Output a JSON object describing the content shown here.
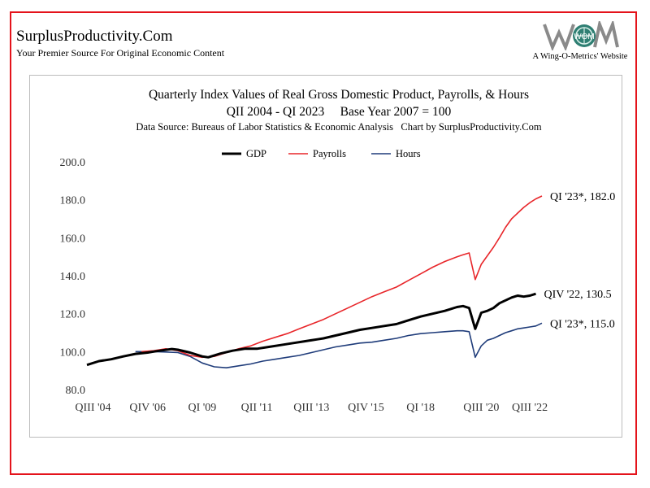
{
  "header": {
    "site_title": "SurplusProductivity.Com",
    "tagline": "Your Premier Source For Original Economic Content",
    "logo_caption": "A Wing-O-Metrics' Website",
    "logo_text": "WOM"
  },
  "colors": {
    "frame": "#e4131b",
    "gdp": "#000000",
    "payrolls": "#e8262a",
    "hours": "#1f3c7a"
  },
  "chart_data": {
    "type": "line",
    "title": "Quarterly Index Values of Real Gross Domestic Product, Payrolls, & Hours",
    "subtitle": "QII 2004 - QI 2023     Base Year 2007 = 100",
    "source": "Data Source: Bureaus of Labor Statistics & Economic Analysis   Chart by SurplusProductivity.Com",
    "xlabel": "",
    "ylabel": "",
    "ylim": [
      80,
      200
    ],
    "yticks": [
      80,
      100,
      120,
      140,
      160,
      180,
      200
    ],
    "ytick_labels": [
      "80.0",
      "100.0",
      "120.0",
      "140.0",
      "160.0",
      "180.0",
      "200.0"
    ],
    "xlim": [
      2004.25,
      2023.0
    ],
    "xticks": [
      2004.5,
      2006.75,
      2009.0,
      2011.25,
      2013.5,
      2015.75,
      2018.0,
      2020.5,
      2022.5
    ],
    "xtick_labels": [
      "QIII '04",
      "QIV '06",
      "QI '09",
      "QII '11",
      "QIII '13",
      "QIV '15",
      "QI '18",
      "QIII '20",
      "QIII '22"
    ],
    "legend": [
      "GDP",
      "Payrolls",
      "Hours"
    ],
    "grid": false,
    "series": [
      {
        "name": "GDP",
        "x": [
          2004.25,
          2004.75,
          2005.25,
          2005.75,
          2006.25,
          2006.75,
          2007.0,
          2007.25,
          2007.75,
          2008.0,
          2008.5,
          2009.0,
          2009.25,
          2009.75,
          2010.25,
          2010.75,
          2011.25,
          2011.75,
          2012.25,
          2012.75,
          2013.25,
          2013.75,
          2014.0,
          2014.5,
          2015.0,
          2015.5,
          2016.0,
          2016.5,
          2017.0,
          2017.5,
          2018.0,
          2018.5,
          2019.0,
          2019.5,
          2019.75,
          2020.0,
          2020.25,
          2020.5,
          2020.75,
          2021.0,
          2021.25,
          2021.5,
          2021.75,
          2022.0,
          2022.25,
          2022.5,
          2022.75
        ],
        "values": [
          93.0,
          95.0,
          96.0,
          97.5,
          98.8,
          99.5,
          100.0,
          100.5,
          101.4,
          101.0,
          99.5,
          97.5,
          97.0,
          99.0,
          100.5,
          101.5,
          101.5,
          102.5,
          103.5,
          104.5,
          105.5,
          106.5,
          107.0,
          108.5,
          110.0,
          111.5,
          112.5,
          113.5,
          114.5,
          116.5,
          118.5,
          120.0,
          121.5,
          123.5,
          124.0,
          123.0,
          112.0,
          120.5,
          121.5,
          123.0,
          125.5,
          127.0,
          128.5,
          129.5,
          129.0,
          129.5,
          130.5
        ]
      },
      {
        "name": "Payrolls",
        "x": [
          2006.5,
          2007.0,
          2007.5,
          2008.0,
          2008.5,
          2009.0,
          2009.5,
          2010.0,
          2010.5,
          2011.0,
          2011.5,
          2012.0,
          2012.5,
          2013.0,
          2013.5,
          2014.0,
          2014.5,
          2015.0,
          2015.5,
          2016.0,
          2016.5,
          2017.0,
          2017.5,
          2018.0,
          2018.5,
          2019.0,
          2019.5,
          2019.75,
          2020.0,
          2020.25,
          2020.5,
          2020.75,
          2021.0,
          2021.25,
          2021.5,
          2021.75,
          2022.0,
          2022.25,
          2022.5,
          2022.75,
          2023.0
        ],
        "values": [
          100.0,
          100.5,
          101.5,
          100.5,
          98.0,
          97.0,
          97.5,
          99.5,
          101.5,
          103.0,
          105.5,
          107.5,
          109.5,
          112.0,
          114.5,
          117.0,
          120.0,
          123.0,
          126.0,
          129.0,
          131.5,
          134.0,
          137.5,
          141.0,
          144.5,
          147.5,
          150.0,
          151.0,
          152.0,
          138.0,
          146.0,
          150.5,
          155.0,
          160.0,
          165.5,
          170.0,
          173.0,
          176.0,
          178.5,
          180.5,
          182.0
        ]
      },
      {
        "name": "Hours",
        "x": [
          2006.25,
          2007.0,
          2007.5,
          2008.0,
          2008.5,
          2009.0,
          2009.5,
          2010.0,
          2010.5,
          2011.0,
          2011.5,
          2012.0,
          2012.5,
          2013.0,
          2013.5,
          2014.0,
          2014.5,
          2015.0,
          2015.5,
          2016.0,
          2016.5,
          2017.0,
          2017.5,
          2018.0,
          2018.5,
          2019.0,
          2019.5,
          2019.75,
          2020.0,
          2020.25,
          2020.5,
          2020.75,
          2021.0,
          2021.25,
          2021.5,
          2021.75,
          2022.0,
          2022.25,
          2022.5,
          2022.75,
          2023.0
        ],
        "values": [
          100.0,
          100.0,
          99.8,
          99.5,
          97.5,
          94.0,
          92.0,
          91.5,
          92.5,
          93.5,
          95.0,
          96.0,
          97.0,
          98.0,
          99.5,
          101.0,
          102.5,
          103.5,
          104.5,
          105.0,
          106.0,
          107.0,
          108.5,
          109.5,
          110.0,
          110.5,
          111.0,
          111.0,
          110.5,
          97.0,
          103.0,
          106.0,
          107.0,
          108.5,
          110.0,
          111.0,
          112.0,
          112.5,
          113.0,
          113.5,
          115.0
        ]
      }
    ],
    "annotations": [
      {
        "series": "Payrolls",
        "x": 2023.0,
        "y": 182.0,
        "text": "QI '23*, 182.0"
      },
      {
        "series": "GDP",
        "x": 2022.75,
        "y": 130.5,
        "text": "QIV '22, 130.5"
      },
      {
        "series": "Hours",
        "x": 2023.0,
        "y": 115.0,
        "text": "QI '23*, 115.0"
      }
    ]
  }
}
